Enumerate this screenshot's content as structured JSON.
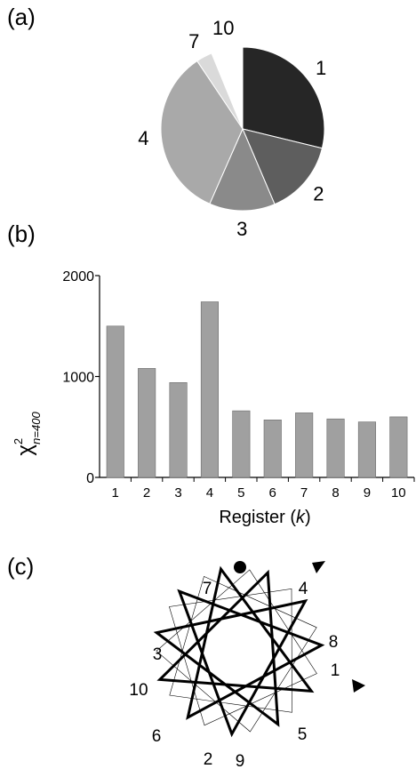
{
  "panels": {
    "a": "(a)",
    "b": "(b)",
    "c": "(c)"
  },
  "chart_data": [
    {
      "type": "pie",
      "panel": "a",
      "slices": [
        {
          "label": "1",
          "value": 28.8,
          "color": "#262626"
        },
        {
          "label": "2",
          "value": 14.8,
          "color": "#5e5e5e"
        },
        {
          "label": "3",
          "value": 13.0,
          "color": "#8a8a8a"
        },
        {
          "label": "4",
          "value": 34.0,
          "color": "#a9a9a9"
        },
        {
          "label": "7",
          "value": 3.2,
          "color": "#dadada"
        },
        {
          "label": "10",
          "value": 6.2,
          "color": "#ffffff"
        }
      ]
    },
    {
      "type": "bar",
      "panel": "b",
      "categories": [
        "1",
        "2",
        "3",
        "4",
        "5",
        "6",
        "7",
        "8",
        "9",
        "10"
      ],
      "values": [
        1500,
        1080,
        940,
        1740,
        660,
        570,
        640,
        580,
        550,
        600
      ],
      "bar_color": "#a0a0a0",
      "xlabel": "Register (k)",
      "xlabel_main": "Register (",
      "xlabel_var": "k",
      "xlabel_close": ")",
      "ylabel": "χ²n=400",
      "ylabel_chi": "χ",
      "ylabel_sup": "2",
      "ylabel_sub": "n=400",
      "ylim": [
        0,
        2000
      ],
      "yticks": [
        "0",
        "1000",
        "2000"
      ],
      "grid": false
    }
  ],
  "wheel": {
    "type": "helical-wheel",
    "panel": "c",
    "labels": [
      "7",
      "4",
      "8",
      "1",
      "5",
      "9",
      "2",
      "6",
      "10",
      "3"
    ],
    "markers": [
      "circle",
      "arrowhead",
      "arrowhead"
    ]
  }
}
